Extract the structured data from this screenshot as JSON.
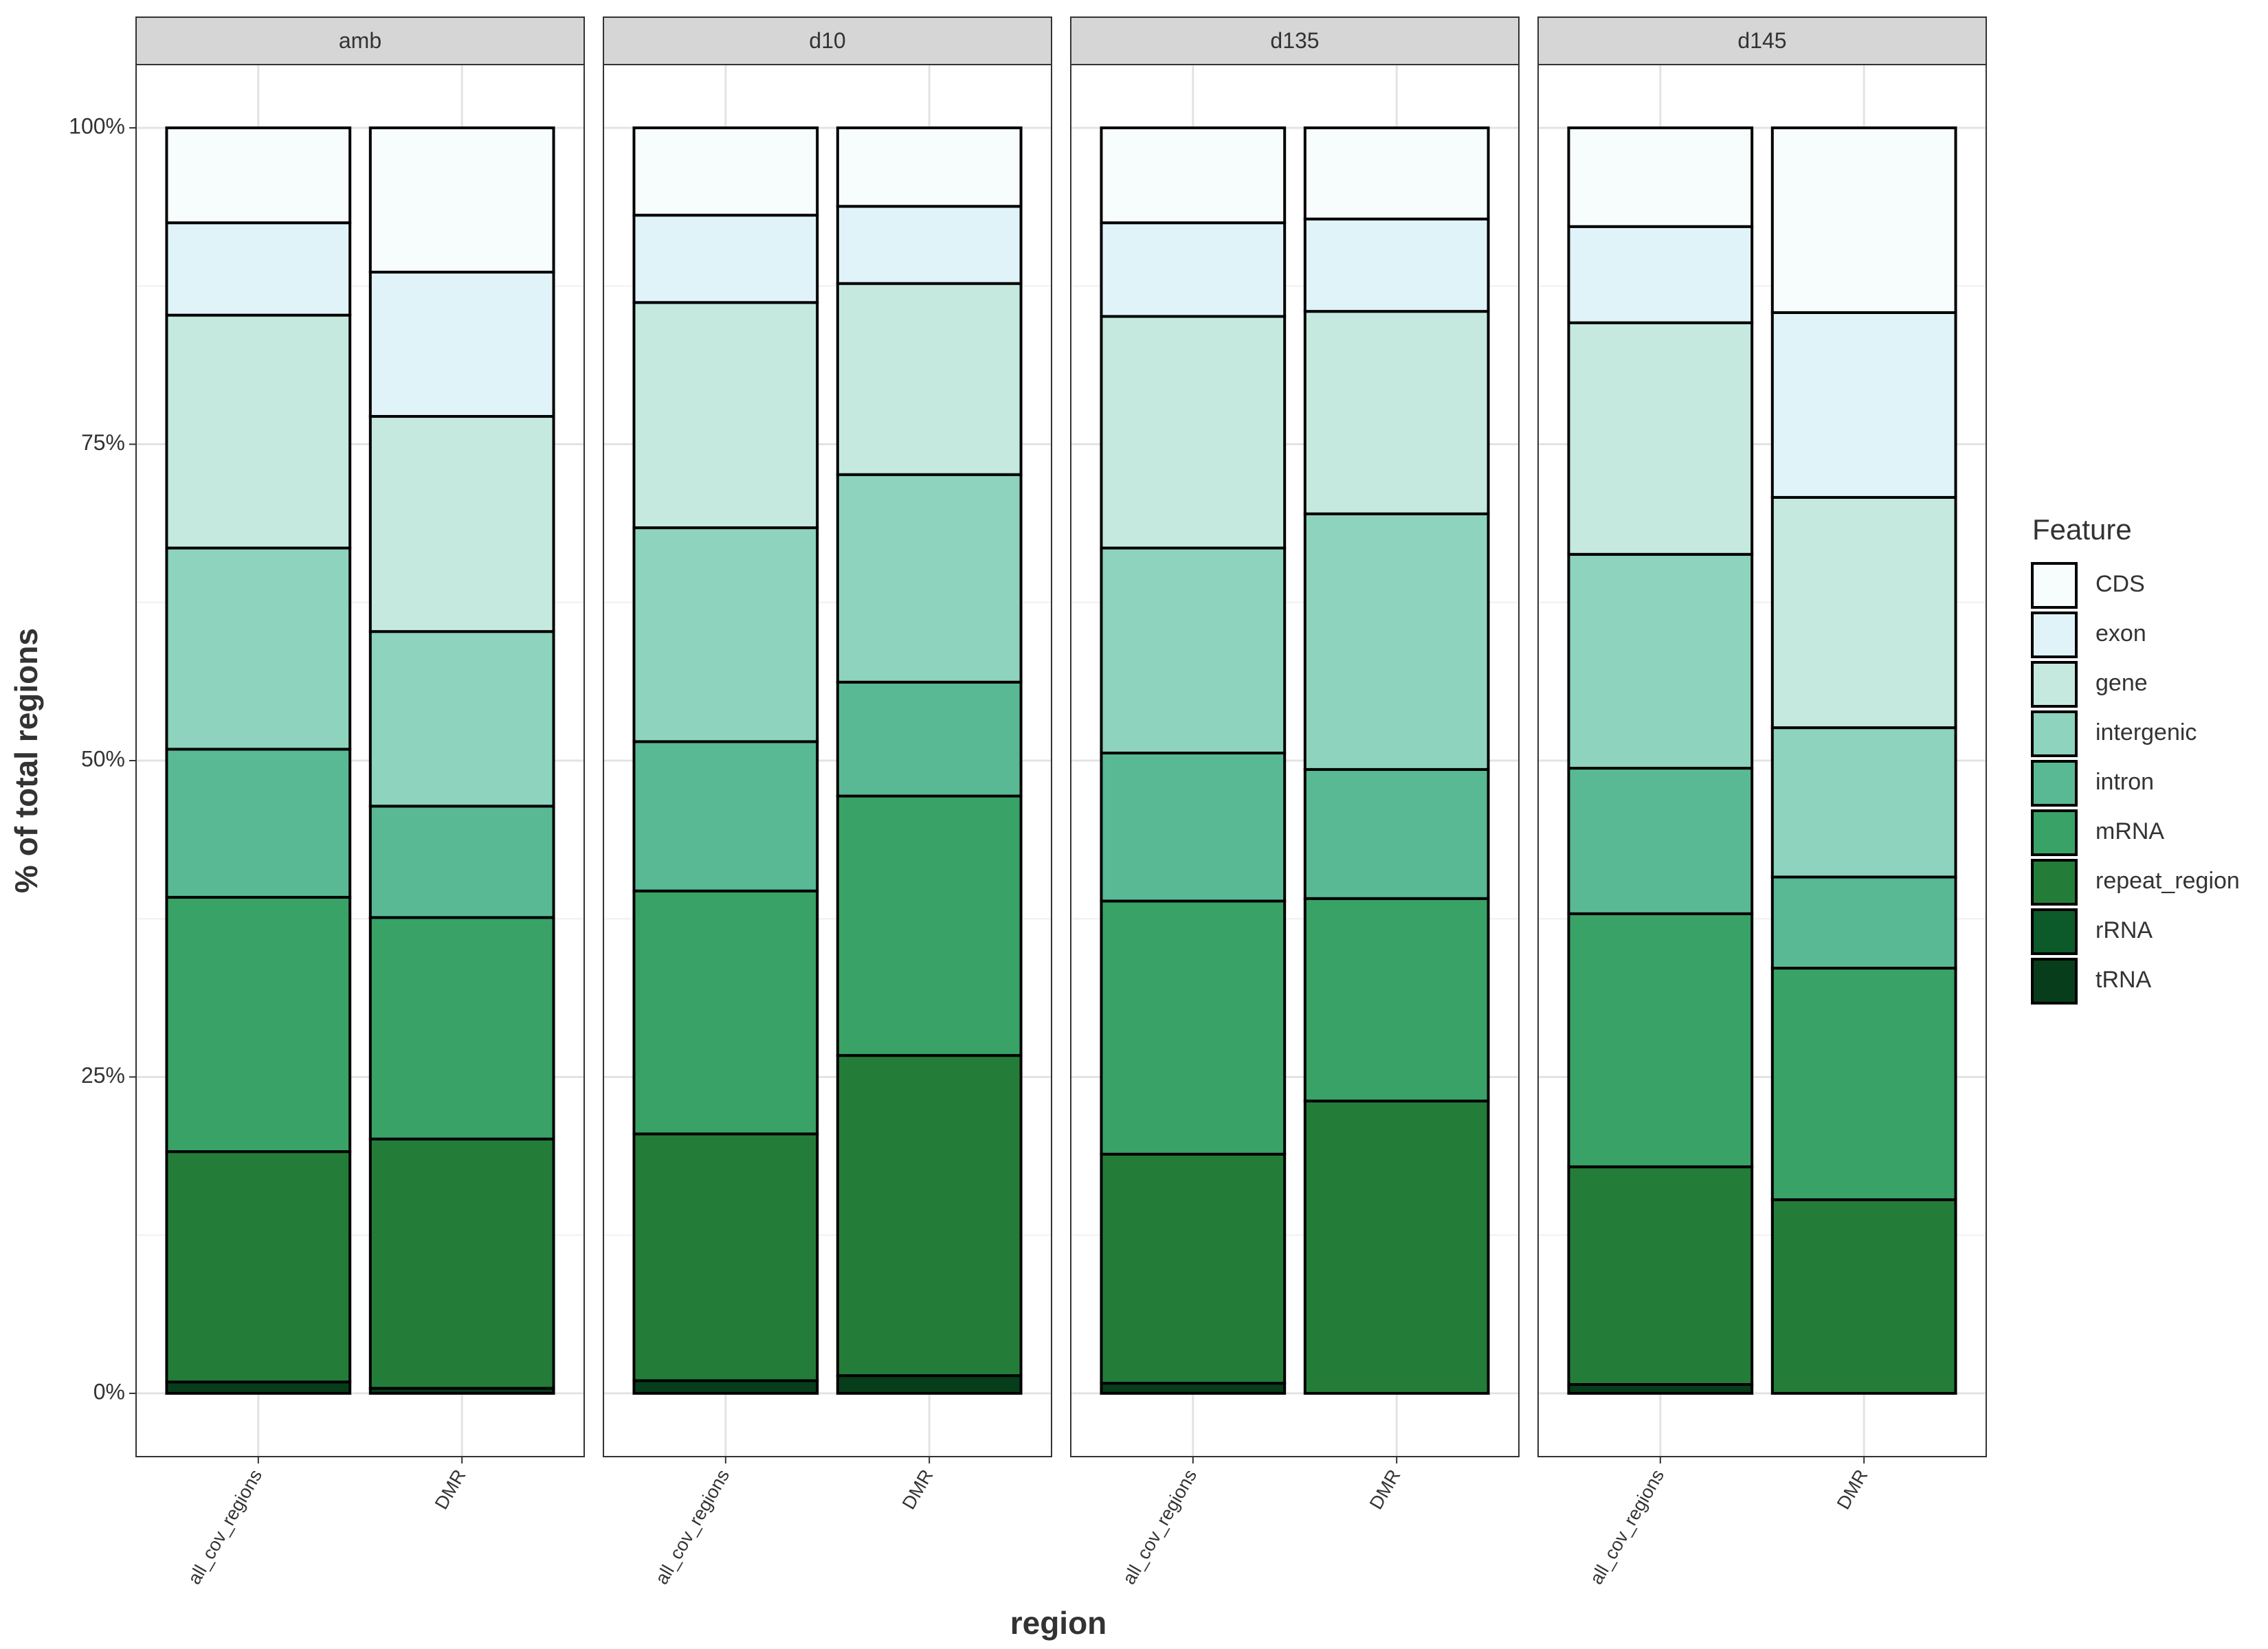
{
  "chart_data": {
    "type": "stacked_bar",
    "y_label": "% of total regions",
    "x_label": "region",
    "legend_title": "Feature",
    "legend_position": "right",
    "grid": true,
    "facets": [
      "amb",
      "d10",
      "d135",
      "d145"
    ],
    "categories": [
      "all_cov_regions",
      "DMR"
    ],
    "ylim": [
      -5,
      105
    ],
    "yticks": [
      {
        "value": 0,
        "label": "0%"
      },
      {
        "value": 25,
        "label": "25%"
      },
      {
        "value": 50,
        "label": "50%"
      },
      {
        "value": 75,
        "label": "75%"
      },
      {
        "value": 100,
        "label": "100%"
      }
    ],
    "series": [
      {
        "name": "CDS",
        "color": "#f7fcfd",
        "values": [
          [
            7.5,
            11.4
          ],
          [
            6.9,
            6.2
          ],
          [
            7.5,
            7.2
          ],
          [
            7.8,
            14.6
          ]
        ]
      },
      {
        "name": "exon",
        "color": "#e0f3f8",
        "values": [
          [
            7.3,
            11.4
          ],
          [
            6.9,
            6.1
          ],
          [
            7.4,
            7.3
          ],
          [
            7.6,
            14.6
          ]
        ]
      },
      {
        "name": "gene",
        "color": "#c5e9df",
        "values": [
          [
            18.4,
            17.0
          ],
          [
            17.8,
            15.1
          ],
          [
            18.3,
            16.0
          ],
          [
            18.3,
            18.2
          ]
        ]
      },
      {
        "name": "intergenic",
        "color": "#8dd3bd",
        "values": [
          [
            15.9,
            13.8
          ],
          [
            16.9,
            16.4
          ],
          [
            16.2,
            20.2
          ],
          [
            16.9,
            11.8
          ]
        ]
      },
      {
        "name": "intron",
        "color": "#59b995",
        "values": [
          [
            11.7,
            8.8
          ],
          [
            11.8,
            9.0
          ],
          [
            11.7,
            10.2
          ],
          [
            11.5,
            7.2
          ]
        ]
      },
      {
        "name": "mRNA",
        "color": "#39a266",
        "values": [
          [
            20.1,
            17.5
          ],
          [
            19.2,
            20.5
          ],
          [
            20.0,
            16.0
          ],
          [
            20.0,
            18.3
          ]
        ]
      },
      {
        "name": "repeat_region",
        "color": "#237d39",
        "values": [
          [
            18.2,
            19.7
          ],
          [
            19.5,
            25.3
          ],
          [
            18.1,
            23.1
          ],
          [
            17.2,
            15.3
          ]
        ]
      },
      {
        "name": "rRNA",
        "color": "#0c5a2a",
        "values": [
          [
            0,
            0
          ],
          [
            0,
            0
          ],
          [
            0,
            0
          ],
          [
            0,
            0
          ]
        ]
      },
      {
        "name": "tRNA",
        "color": "#073d1a",
        "values": [
          [
            0.9,
            0.4
          ],
          [
            1.0,
            1.4
          ],
          [
            0.8,
            0
          ],
          [
            0.7,
            0
          ]
        ]
      }
    ]
  }
}
